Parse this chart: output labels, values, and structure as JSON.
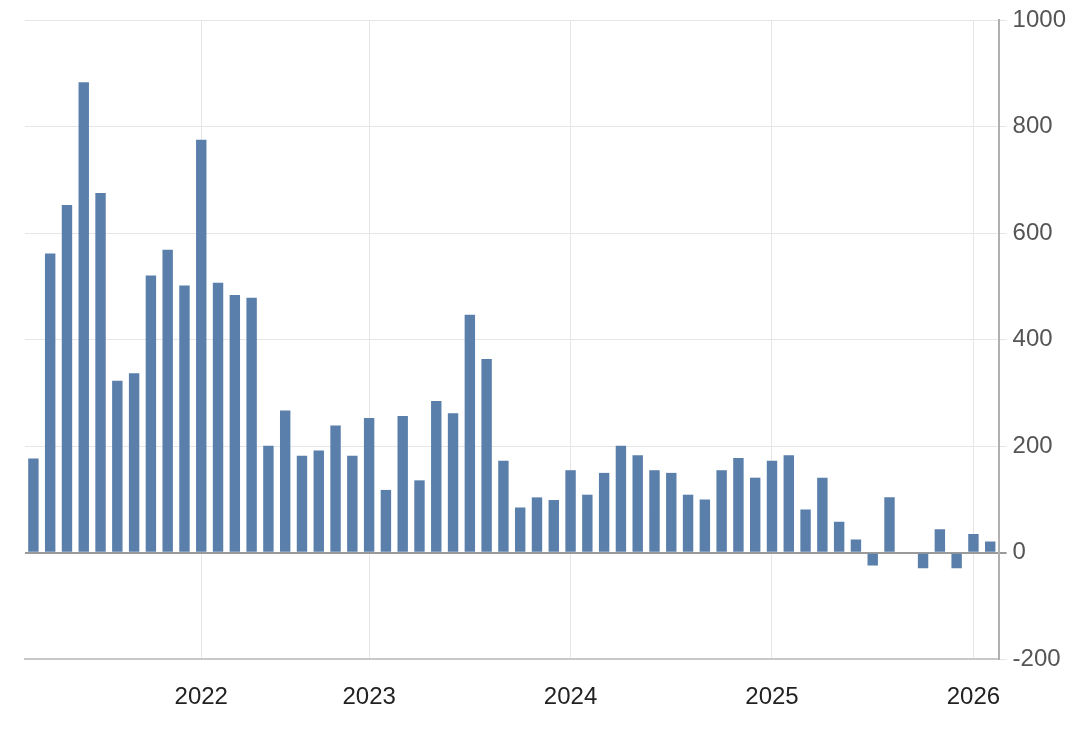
{
  "chart_data": {
    "type": "bar",
    "categories": [
      null,
      null,
      null,
      null,
      null,
      null,
      null,
      null,
      null,
      null,
      "2022",
      null,
      null,
      null,
      null,
      null,
      null,
      null,
      null,
      null,
      "2023",
      null,
      null,
      null,
      null,
      null,
      null,
      null,
      null,
      null,
      null,
      null,
      "2024",
      null,
      null,
      null,
      null,
      null,
      null,
      null,
      null,
      null,
      null,
      null,
      "2025",
      null,
      null,
      null,
      null,
      null,
      null,
      null,
      null,
      null,
      null,
      null,
      "2026",
      null
    ],
    "values": [
      177,
      562,
      653,
      884,
      676,
      323,
      337,
      521,
      569,
      502,
      776,
      507,
      484,
      479,
      201,
      267,
      182,
      192,
      239,
      182,
      253,
      118,
      257,
      136,
      285,
      262,
      447,
      364,
      173,
      85,
      104,
      99,
      155,
      109,
      150,
      201,
      183,
      155,
      150,
      109,
      100,
      155,
      178,
      141,
      173,
      183,
      81,
      141,
      58,
      25,
      -24,
      104,
      null,
      -29,
      44,
      -29,
      35,
      21
    ],
    "color": "#5a7fab",
    "ylim": [
      -200,
      1000
    ],
    "yticks": [
      -200,
      0,
      200,
      400,
      600,
      800,
      1000
    ],
    "grid": true
  }
}
